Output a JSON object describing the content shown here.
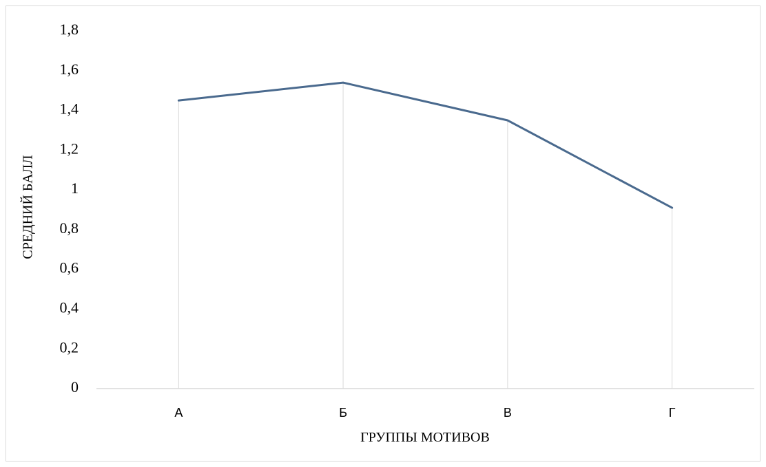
{
  "chart_data": {
    "type": "line",
    "categories": [
      "А",
      "Б",
      "В",
      "Г"
    ],
    "series": [
      {
        "values": [
          1.45,
          1.54,
          1.35,
          0.91
        ]
      }
    ],
    "xlabel": "ГРУППЫ МОТИВОВ",
    "ylabel": "СРЕДНИЙ БАЛЛ",
    "ylim": [
      0,
      1.8
    ],
    "yticks": [
      "0",
      "0,2",
      "0,4",
      "0,6",
      "0,8",
      "1",
      "1,2",
      "1,4",
      "1,6",
      "1,8"
    ],
    "grid": "vertical drop lines at categories",
    "line_color": "#4a6a8e",
    "dropline_color": "#d9d9d9",
    "axis_color": "#d9d9d9"
  }
}
